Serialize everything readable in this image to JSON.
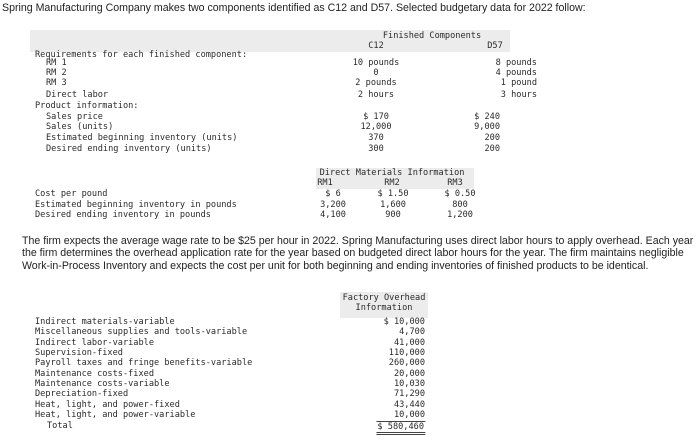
{
  "intro": "Spring Manufacturing Company makes two components identified as C12 and D57. Selected budgetary data for 2022 follow:",
  "components_table": {
    "title": "Finished Components",
    "columns": [
      "C12",
      "D57"
    ],
    "sections": [
      {
        "heading": "Requirements for each finished component:",
        "rows": [
          {
            "label": "RM 1",
            "values": [
              "10 pounds",
              "8 pounds"
            ]
          },
          {
            "label": "RM 2",
            "values": [
              "0",
              "4 pounds"
            ]
          },
          {
            "label": "RM 3",
            "values": [
              "2 pounds",
              "1 pound"
            ]
          },
          {
            "label": "Direct labor",
            "values": [
              "2 hours",
              "3 hours"
            ]
          }
        ]
      },
      {
        "heading": "Product information:",
        "rows": [
          {
            "label": "Sales price",
            "values": [
              "$ 170",
              "$ 240"
            ]
          },
          {
            "label": "Sales (units)",
            "values": [
              "12,000",
              "9,000"
            ]
          },
          {
            "label": "Estimated beginning inventory (units)",
            "values": [
              "370",
              "200"
            ]
          },
          {
            "label": "Desired ending inventory (units)",
            "values": [
              "300",
              "200"
            ]
          }
        ]
      }
    ]
  },
  "materials_table": {
    "title": "Direct Materials Information",
    "columns": [
      "RM1",
      "RM2",
      "RM3"
    ],
    "rows": [
      {
        "label": "Cost per pound",
        "values": [
          "$ 6",
          "$ 1.50",
          "$ 0.50"
        ]
      },
      {
        "label": "Estimated beginning inventory in pounds",
        "values": [
          "3,200",
          "1,600",
          "800"
        ]
      },
      {
        "label": "Desired ending inventory in pounds",
        "values": [
          "4,100",
          "900",
          "1,200"
        ]
      }
    ]
  },
  "paragraph": "The firm expects the average wage rate to be $25 per hour in 2022. Spring Manufacturing uses direct labor hours to apply overhead. Each year the firm determines the overhead application rate for the year based on budgeted direct labor hours for the year. The firm maintains negligible Work-in-Process Inventory and expects the cost per unit for both beginning and ending inventories of finished products to be identical.",
  "overhead_table": {
    "title": "Factory Overhead Information",
    "rows": [
      {
        "label": "Indirect materials-variable",
        "value": "$ 10,000"
      },
      {
        "label": "Miscellaneous supplies and tools-variable",
        "value": "4,700"
      },
      {
        "label": "Indirect labor-variable",
        "value": "41,000"
      },
      {
        "label": "Supervision-fixed",
        "value": "110,000"
      },
      {
        "label": "Payroll taxes and fringe benefits-variable",
        "value": "260,000"
      },
      {
        "label": "Maintenance costs-fixed",
        "value": "20,000"
      },
      {
        "label": "Maintenance costs-variable",
        "value": "10,030"
      },
      {
        "label": "Depreciation-fixed",
        "value": "71,290"
      },
      {
        "label": "Heat, light, and power-fixed",
        "value": "43,440"
      },
      {
        "label": "Heat, light, and power-variable",
        "value": "10,000"
      },
      {
        "label": "Total",
        "value": "$ 580,460"
      }
    ]
  }
}
